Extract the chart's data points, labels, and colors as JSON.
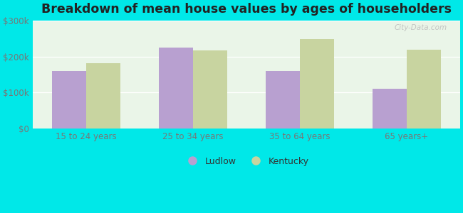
{
  "title": "Breakdown of mean house values by ages of householders",
  "categories": [
    "15 to 24 years",
    "25 to 34 years",
    "35 to 64 years",
    "65 years+"
  ],
  "ludlow_values": [
    160000,
    225000,
    160000,
    110000
  ],
  "kentucky_values": [
    182000,
    218000,
    250000,
    220000
  ],
  "ludlow_color": "#b8a0d0",
  "kentucky_color": "#c8d4a0",
  "background_color": "#eaf5e8",
  "outer_background": "#00e8e8",
  "ylim": [
    0,
    300000
  ],
  "yticks": [
    0,
    100000,
    200000,
    300000
  ],
  "ytick_labels": [
    "$0",
    "$100k",
    "$200k",
    "$300k"
  ],
  "bar_width": 0.32,
  "legend_ludlow": "Ludlow",
  "legend_kentucky": "Kentucky",
  "title_fontsize": 12.5,
  "watermark": "City-Data.com",
  "tick_color": "#777777",
  "grid_color": "#ffffff"
}
